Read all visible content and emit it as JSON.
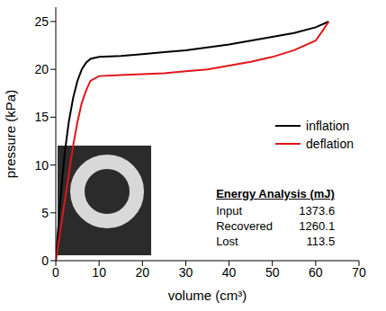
{
  "chart_data": {
    "type": "line",
    "x_label": "volume (cm³)",
    "y_label": "pressure (kPa)",
    "xlim": [
      0,
      70
    ],
    "xticks": [
      0,
      10,
      20,
      30,
      40,
      50,
      60,
      70
    ],
    "ylim": [
      0,
      26.5
    ],
    "yticks": [
      0,
      5,
      10,
      15,
      20,
      25
    ],
    "grid": false,
    "legend": "right",
    "series": [
      {
        "name": "inflation",
        "color": "#000000",
        "x": [
          0,
          1,
          2,
          3,
          4,
          5,
          6,
          7,
          8,
          10,
          15,
          20,
          25,
          30,
          35,
          40,
          45,
          50,
          55,
          60,
          63
        ],
        "values": [
          0,
          6,
          11,
          14.5,
          17,
          18.8,
          20,
          20.7,
          21.1,
          21.3,
          21.4,
          21.6,
          21.8,
          22,
          22.3,
          22.6,
          23,
          23.4,
          23.8,
          24.4,
          25
        ]
      },
      {
        "name": "deflation",
        "color": "#e0161b",
        "x": [
          63,
          62,
          60,
          55,
          50,
          45,
          40,
          35,
          30,
          25,
          20,
          15,
          10,
          8,
          7,
          6,
          5,
          4,
          3,
          2,
          1,
          0
        ],
        "values": [
          25,
          24.3,
          23,
          22,
          21.3,
          20.8,
          20.4,
          20,
          19.8,
          19.6,
          19.5,
          19.4,
          19.3,
          18.8,
          17.8,
          16.5,
          14.5,
          12,
          9,
          6,
          3,
          0
        ]
      }
    ],
    "annotations": {
      "title": "Energy Analysis (mJ)",
      "rows": [
        {
          "label": "Input",
          "value": 1373.6
        },
        {
          "label": "Recovered",
          "value": 1260.1
        },
        {
          "label": "Lost",
          "value": 113.5
        }
      ]
    }
  }
}
